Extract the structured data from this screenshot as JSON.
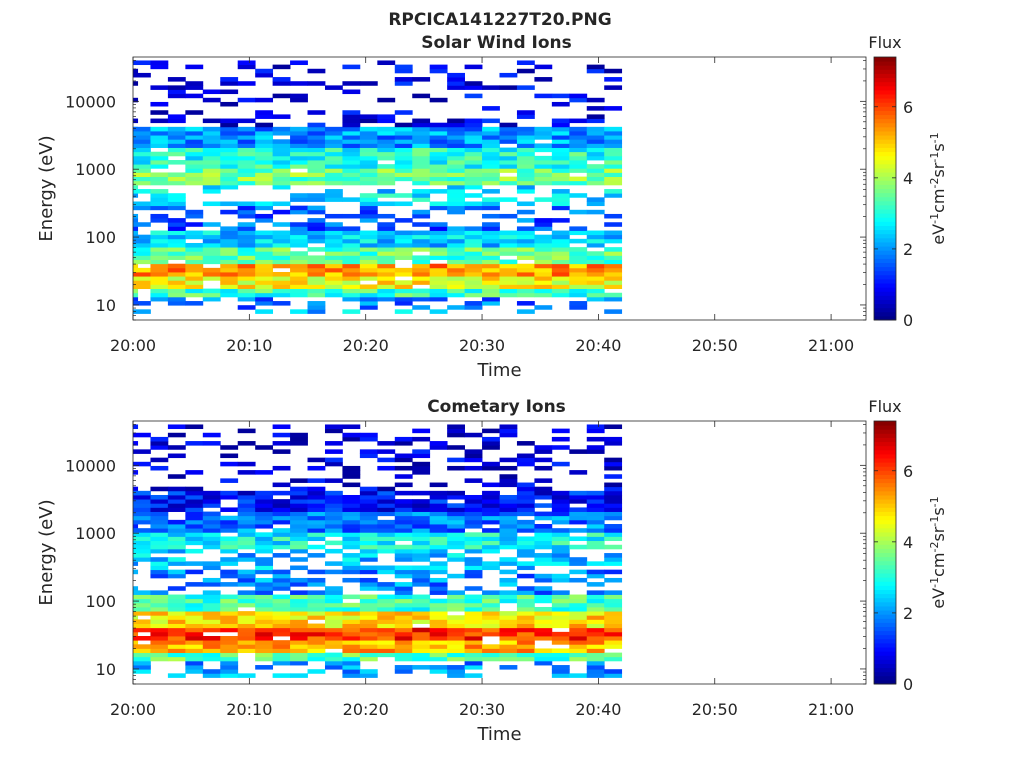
{
  "figure": {
    "title": "RPCICA141227T20.PNG"
  },
  "colorbar": {
    "label": "Flux",
    "unit_label": "eV-1cm-2sr-1s-1",
    "ticks": [
      0,
      2,
      4,
      6
    ],
    "range": [
      0,
      7.4
    ],
    "colormap": "jet"
  },
  "chart_data": [
    {
      "type": "heatmap",
      "title": "Solar Wind Ions",
      "xlabel": "Time",
      "ylabel": "Energy (eV)",
      "x_ticks": [
        "20:00",
        "20:10",
        "20:20",
        "20:30",
        "20:40",
        "20:50",
        "21:00"
      ],
      "x_range_minutes": [
        0,
        63
      ],
      "y_scale": "log",
      "y_ticks": [
        10,
        100,
        1000,
        10000
      ],
      "y_range": [
        6,
        45000
      ],
      "data_end_minute": 42,
      "scan_columns_minutes": [
        0,
        3,
        6,
        9,
        12,
        15,
        18,
        21,
        24,
        27,
        30,
        33,
        36,
        39,
        42
      ],
      "energy_bands": [
        {
          "range": [
            7,
            9
          ],
          "flux": 2.3
        },
        {
          "range": [
            9,
            13
          ],
          "flux": 1.8
        },
        {
          "range": [
            13,
            18
          ],
          "flux": 3.2
        },
        {
          "range": [
            18,
            26
          ],
          "flux": 4.6
        },
        {
          "range": [
            26,
            40
          ],
          "flux": 5.4
        },
        {
          "range": [
            40,
            70
          ],
          "flux": 3.4
        },
        {
          "range": [
            70,
            130
          ],
          "flux": 2.4
        },
        {
          "range": [
            130,
            300
          ],
          "flux": 1.6
        },
        {
          "range": [
            300,
            600
          ],
          "flux": 2.6
        },
        {
          "range": [
            600,
            1100
          ],
          "flux": 3.6
        },
        {
          "range": [
            1100,
            2200
          ],
          "flux": 3.0
        },
        {
          "range": [
            2200,
            4500
          ],
          "flux": 2.0
        },
        {
          "range": [
            4500,
            40000
          ],
          "flux": 0.7
        }
      ]
    },
    {
      "type": "heatmap",
      "title": "Cometary Ions",
      "xlabel": "Time",
      "ylabel": "Energy (eV)",
      "x_ticks": [
        "20:00",
        "20:10",
        "20:20",
        "20:30",
        "20:40",
        "20:50",
        "21:00"
      ],
      "x_range_minutes": [
        0,
        63
      ],
      "y_scale": "log",
      "y_ticks": [
        10,
        100,
        1000,
        10000
      ],
      "y_range": [
        6,
        45000
      ],
      "data_end_minute": 42,
      "scan_columns_minutes": [
        0,
        3,
        6,
        9,
        12,
        15,
        18,
        21,
        24,
        27,
        30,
        33,
        36,
        39,
        42
      ],
      "energy_bands": [
        {
          "range": [
            7,
            9
          ],
          "flux": 2.3
        },
        {
          "range": [
            9,
            13
          ],
          "flux": 2.0
        },
        {
          "range": [
            13,
            18
          ],
          "flux": 3.4
        },
        {
          "range": [
            18,
            26
          ],
          "flux": 5.2
        },
        {
          "range": [
            26,
            40
          ],
          "flux": 6.2
        },
        {
          "range": [
            40,
            70
          ],
          "flux": 4.8
        },
        {
          "range": [
            70,
            130
          ],
          "flux": 3.2
        },
        {
          "range": [
            130,
            300
          ],
          "flux": 1.9
        },
        {
          "range": [
            300,
            600
          ],
          "flux": 2.3
        },
        {
          "range": [
            600,
            1100
          ],
          "flux": 2.8
        },
        {
          "range": [
            1100,
            2200
          ],
          "flux": 1.8
        },
        {
          "range": [
            2200,
            4500
          ],
          "flux": 1.0
        },
        {
          "range": [
            4500,
            40000
          ],
          "flux": 0.6
        }
      ]
    }
  ]
}
